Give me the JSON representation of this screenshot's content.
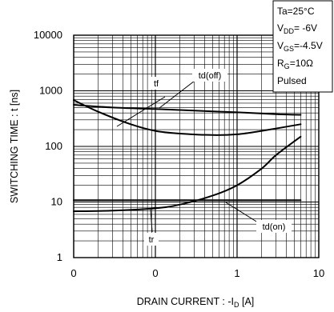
{
  "chart_data": {
    "type": "line",
    "xlabel": "DRAIN CURRENT : -I",
    "xlabel_sub": "D",
    "xlabel_unit": " [A]",
    "ylabel": "SWITCHING TIME : t [ns]",
    "x_scale": "log",
    "y_scale": "log",
    "xlim": [
      0.01,
      10
    ],
    "ylim": [
      1,
      10000
    ],
    "x_tick_labels": [
      "0",
      "0",
      "1",
      "10"
    ],
    "y_tick_labels": [
      "1",
      "10",
      "100",
      "1000",
      "10000"
    ],
    "grid": true,
    "conditions": {
      "ta": {
        "main": "Ta=25°C",
        "sub": "",
        "rest": ""
      },
      "vdd": {
        "main": "V",
        "sub": "DD",
        "rest": "= -6V"
      },
      "vgs": {
        "main": "V",
        "sub": "GS",
        "rest": "=-4.5V"
      },
      "rg": {
        "main": "R",
        "sub": "G",
        "rest": "=10Ω"
      },
      "mode": {
        "main": "Pulsed",
        "sub": "",
        "rest": ""
      }
    },
    "series": [
      {
        "name": "tf",
        "x": [
          0.01,
          0.03,
          0.1,
          0.3,
          1,
          3,
          6
        ],
        "y": [
          560,
          500,
          470,
          440,
          410,
          380,
          370
        ]
      },
      {
        "name": "td(off)",
        "x": [
          0.01,
          0.02,
          0.05,
          0.1,
          0.2,
          0.5,
          1,
          2,
          6
        ],
        "y": [
          680,
          420,
          250,
          190,
          170,
          160,
          165,
          190,
          250
        ]
      },
      {
        "name": "tr",
        "x": [
          0.01,
          0.03,
          0.1,
          0.2,
          0.5,
          1,
          2,
          3,
          6
        ],
        "y": [
          6.8,
          7,
          7.7,
          9,
          13,
          20,
          40,
          70,
          150
        ]
      },
      {
        "name": "td(on)",
        "x": [
          0.01,
          0.1,
          1,
          6
        ],
        "y": [
          10.8,
          10.8,
          10.8,
          10.8
        ]
      }
    ]
  }
}
